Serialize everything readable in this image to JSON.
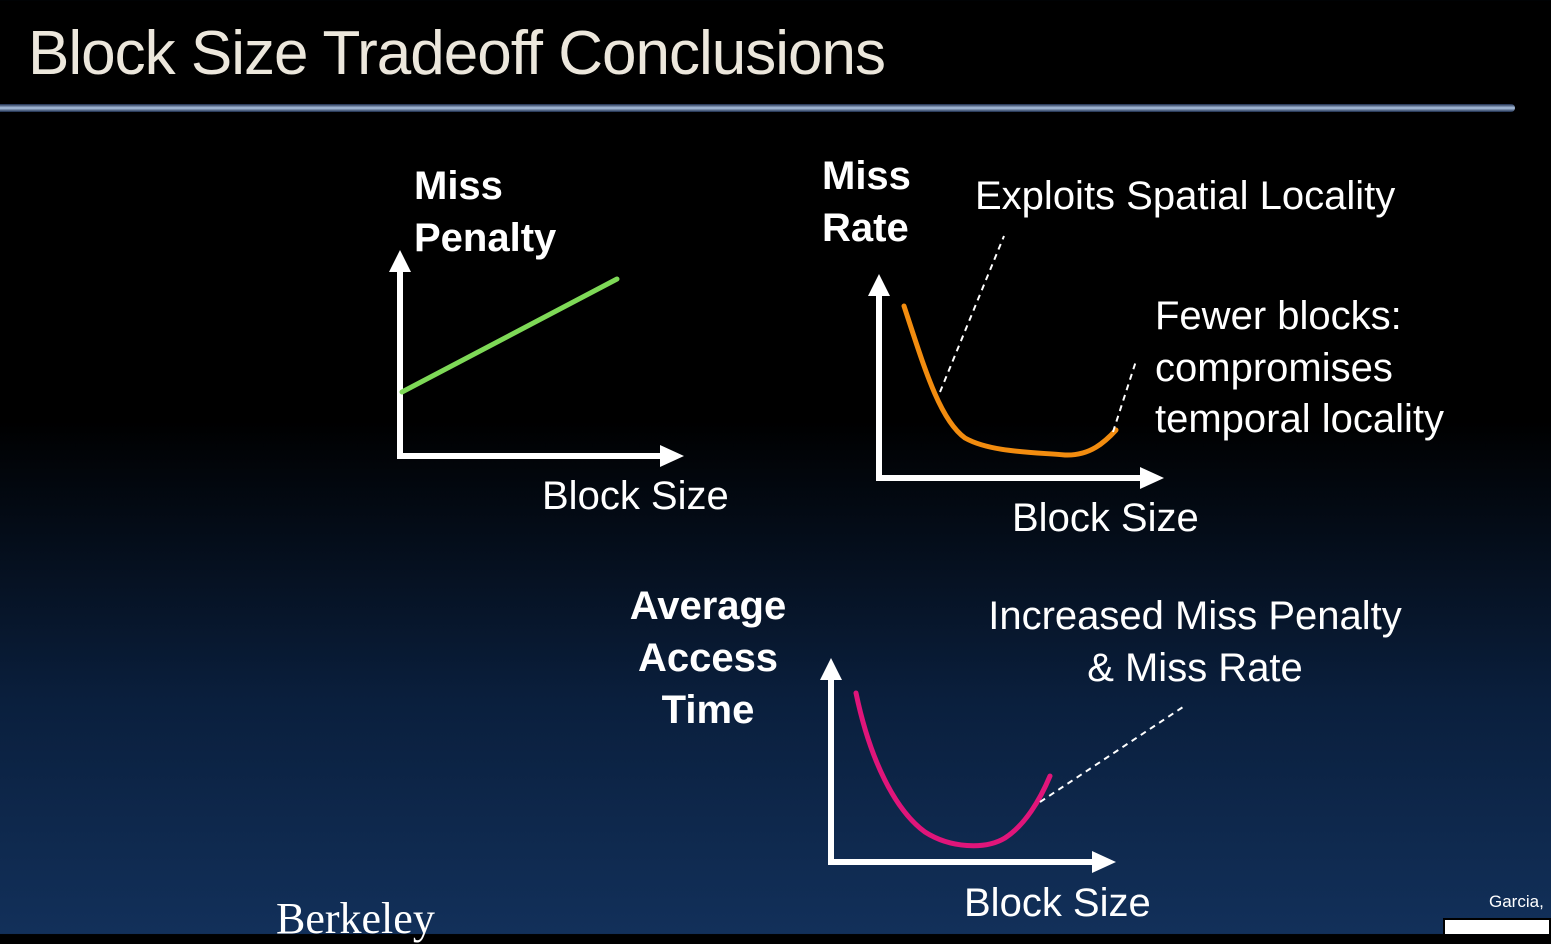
{
  "slide": {
    "title": "Block Size Tradeoff Conclusions",
    "logo_text": "Berkeley",
    "credit": "Garcia,"
  },
  "graph_miss_penalty": {
    "ylabel_line1": "Miss",
    "ylabel_line2": "Penalty",
    "xlabel": "Block Size",
    "curve_color": "#7ed957"
  },
  "graph_miss_rate": {
    "ylabel_line1": "Miss",
    "ylabel_line2": "Rate",
    "xlabel": "Block Size",
    "annotation_spatial": "Exploits Spatial Locality",
    "annotation_fewer_line1": "Fewer blocks:",
    "annotation_fewer_line2": "compromises",
    "annotation_fewer_line3": "temporal locality",
    "curve_color": "#f28c0f"
  },
  "graph_access_time": {
    "ylabel_line1": "Average",
    "ylabel_line2": "Access",
    "ylabel_line3": "Time",
    "xlabel": "Block Size",
    "annotation_line1": "Increased Miss Penalty",
    "annotation_line2": "& Miss Rate",
    "curve_color": "#e0157a"
  },
  "icons": {
    "cc_license": "creative-commons-icon"
  }
}
